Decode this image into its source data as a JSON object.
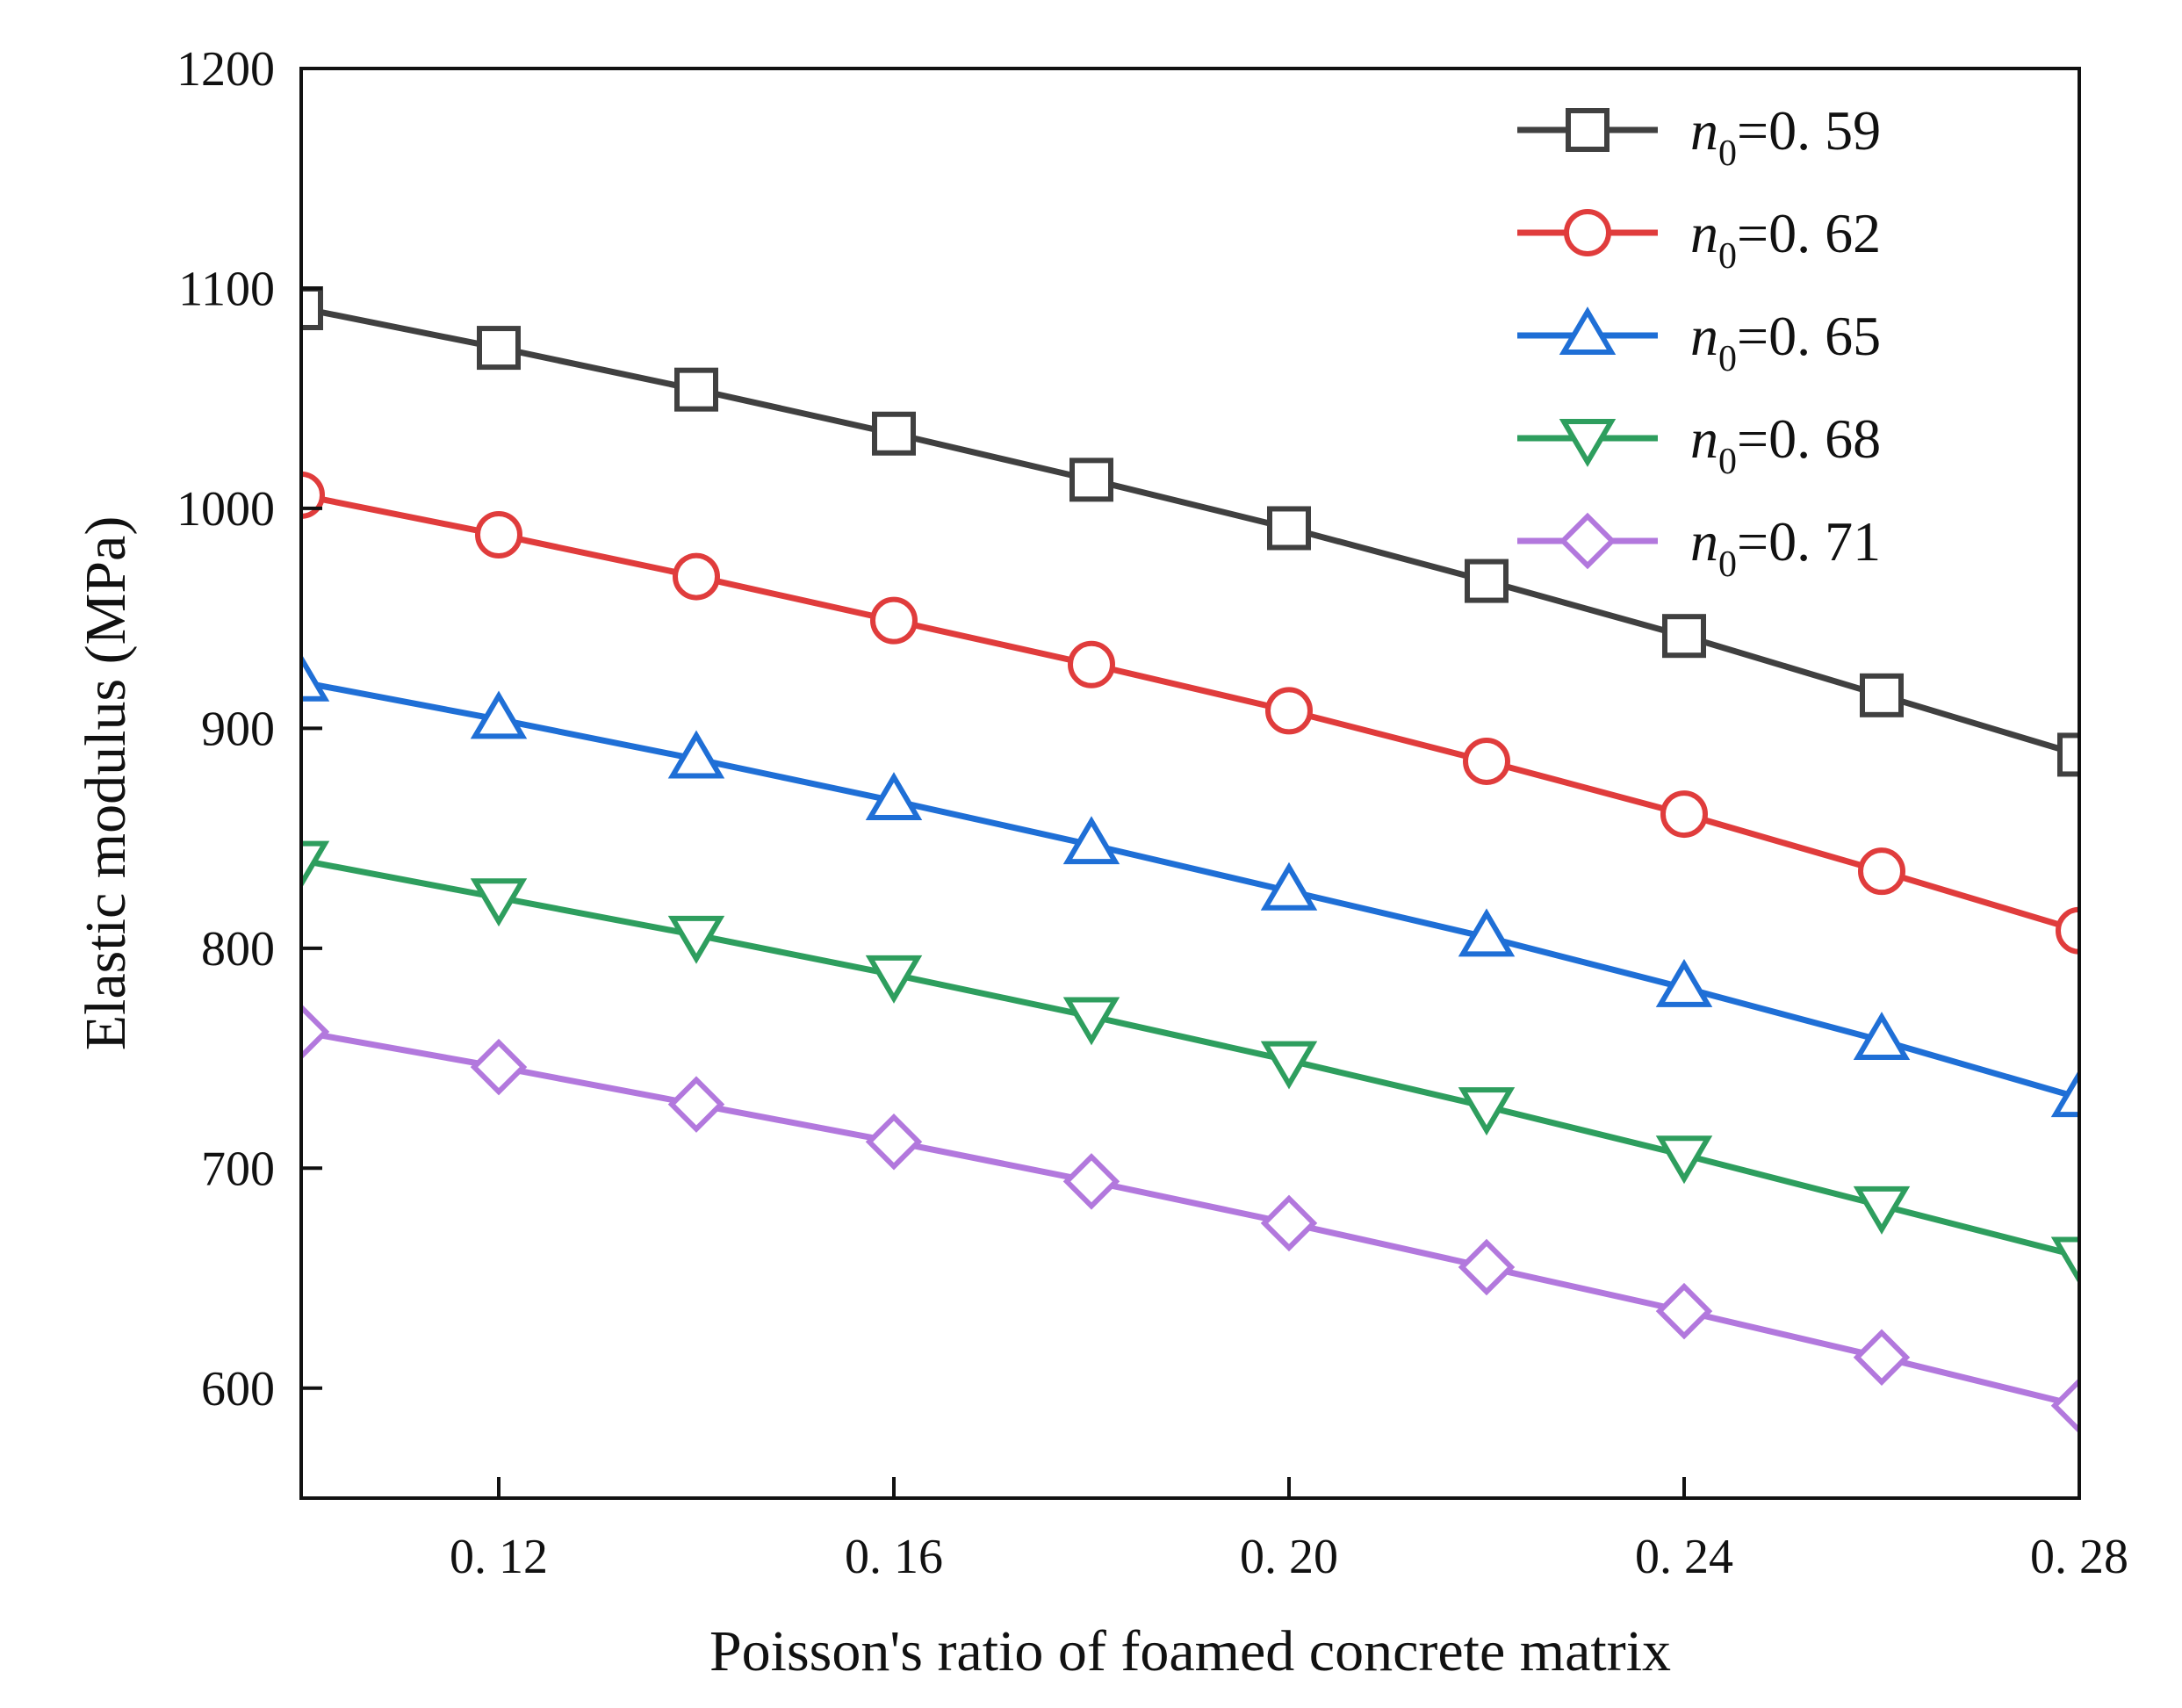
{
  "chart_data": {
    "type": "line",
    "title": "",
    "xlabel": "Poisson's ratio of foamed concrete matrix",
    "ylabel": "Elastic modulus (MPa)",
    "xlim": [
      0.1,
      0.28
    ],
    "ylim": [
      550,
      1200
    ],
    "xticks": [
      0.12,
      0.16,
      0.2,
      0.24,
      0.28
    ],
    "xtick_labels": [
      "0. 12",
      "0. 16",
      "0. 20",
      "0. 24",
      "0. 28"
    ],
    "yticks": [
      600,
      700,
      800,
      900,
      1000,
      1100,
      1200
    ],
    "ytick_labels": [
      "600",
      "700",
      "800",
      "900",
      "1000",
      "1100",
      "1200"
    ],
    "grid": false,
    "legend_position": "top-right",
    "x": [
      0.1,
      0.12,
      0.14,
      0.16,
      0.18,
      0.2,
      0.22,
      0.24,
      0.26,
      0.28
    ],
    "series": [
      {
        "name": "n0=0. 59",
        "legend_symbol": "n",
        "legend_sub": "0",
        "legend_value": "=0. 59",
        "color": "#404040",
        "marker": "square",
        "values": [
          1091,
          1073,
          1054,
          1034,
          1013,
          991,
          967,
          942,
          915,
          888
        ]
      },
      {
        "name": "n0=0. 62",
        "legend_symbol": "n",
        "legend_sub": "0",
        "legend_value": "=0. 62",
        "color": "#e03c3c",
        "marker": "circle",
        "values": [
          1006,
          988,
          969,
          949,
          929,
          908,
          885,
          861,
          835,
          808
        ]
      },
      {
        "name": "n0=0. 65",
        "legend_symbol": "n",
        "legend_sub": "0",
        "legend_value": "=0. 65",
        "color": "#1f6fd6",
        "marker": "triangle-up",
        "values": [
          921,
          904,
          886,
          867,
          847,
          826,
          805,
          782,
          758,
          732
        ]
      },
      {
        "name": "n0=0. 68",
        "legend_symbol": "n",
        "legend_sub": "0",
        "legend_value": "=0. 68",
        "color": "#2e9e5e",
        "marker": "triangle-down",
        "values": [
          840,
          823,
          806,
          788,
          769,
          749,
          728,
          706,
          683,
          660
        ]
      },
      {
        "name": "n0=0. 71",
        "legend_symbol": "n",
        "legend_sub": "0",
        "legend_value": "=0. 71",
        "color": "#b278dd",
        "marker": "diamond",
        "values": [
          762,
          746,
          729,
          712,
          694,
          675,
          655,
          635,
          614,
          592
        ]
      }
    ]
  }
}
